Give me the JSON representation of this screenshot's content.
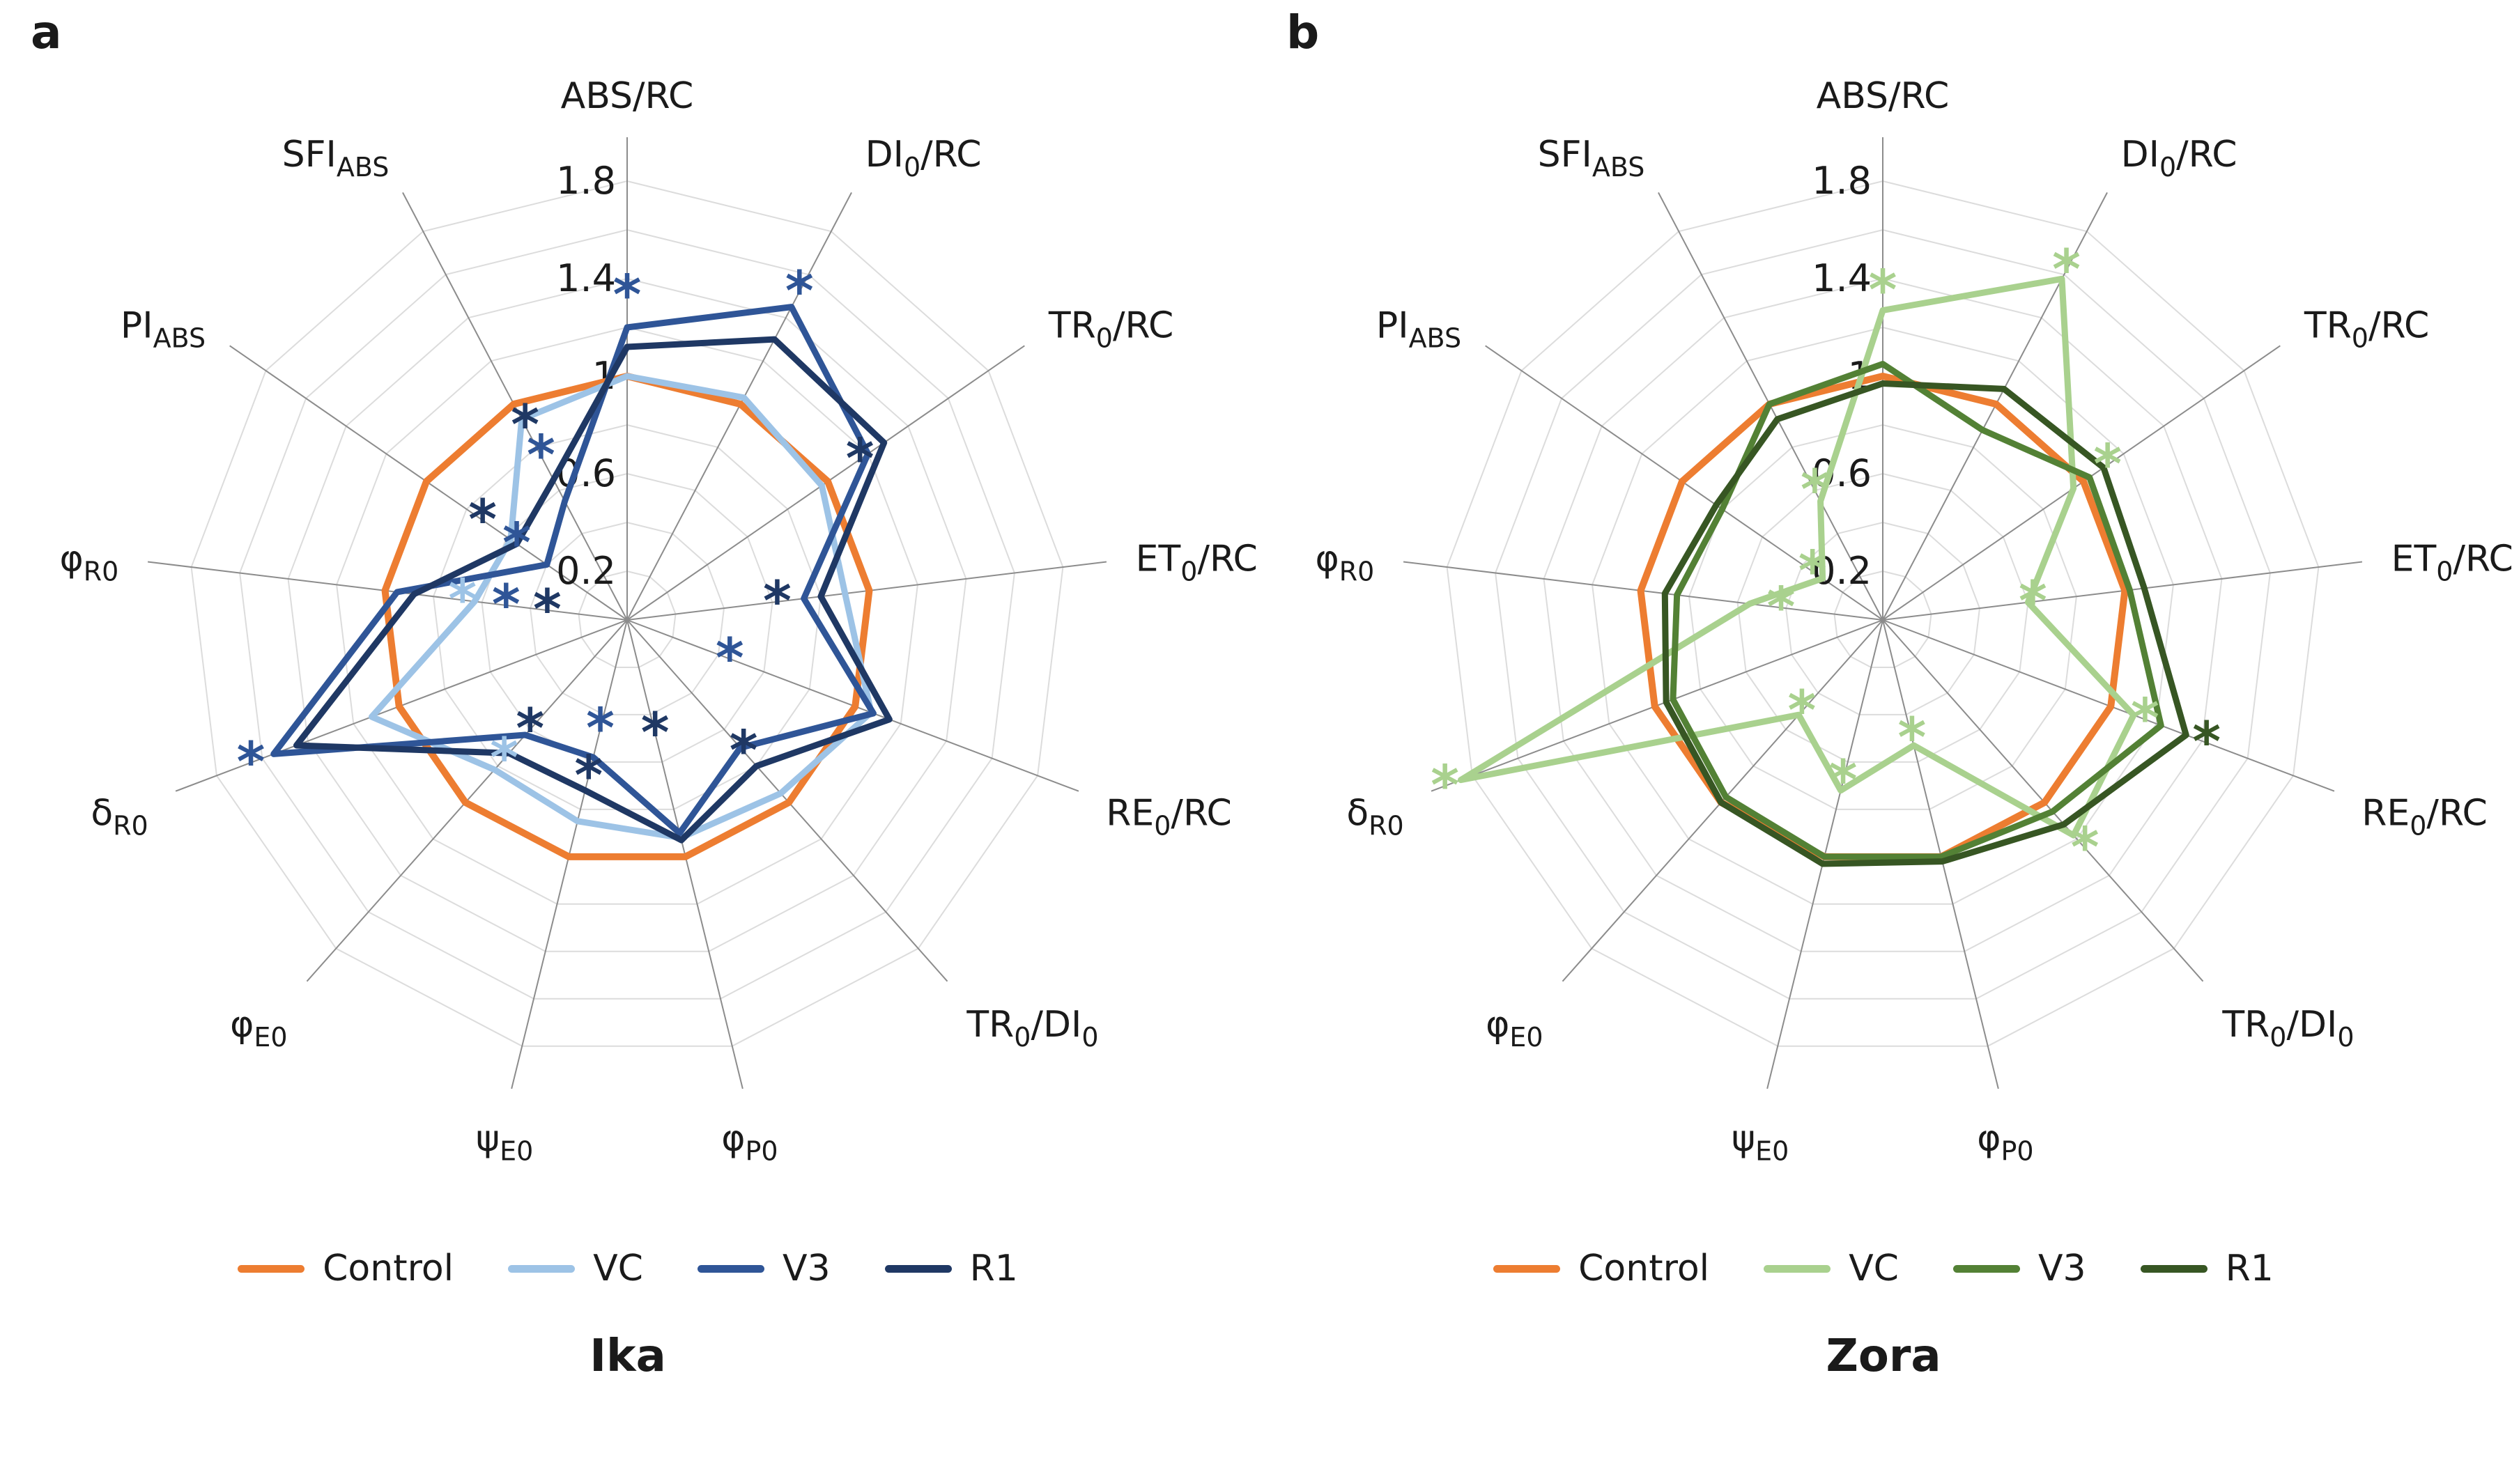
{
  "figure": {
    "panels": [
      {
        "letter": "a",
        "title": "Ika"
      },
      {
        "letter": "b",
        "title": "Zora"
      }
    ]
  },
  "chart_data": [
    {
      "type": "radar",
      "panel": "a",
      "title": "Ika",
      "axes": [
        "ABS/RC",
        "DI0/RC",
        "TR0/RC",
        "ET0/RC",
        "RE0/RC",
        "TR0/DI0",
        "phiP0",
        "psiE0",
        "phiE0",
        "deltaR0",
        "phiR0",
        "PI_ABS",
        "SFI_ABS"
      ],
      "axis_labels": [
        [
          {
            "t": "ABS/RC"
          }
        ],
        [
          {
            "t": "DI"
          },
          {
            "sub": "0"
          },
          {
            "t": "/RC"
          }
        ],
        [
          {
            "t": "TR"
          },
          {
            "sub": "0"
          },
          {
            "t": "/RC"
          }
        ],
        [
          {
            "t": "ET"
          },
          {
            "sub": "0"
          },
          {
            "t": "/RC"
          }
        ],
        [
          {
            "t": "RE"
          },
          {
            "sub": "0"
          },
          {
            "t": "/RC"
          }
        ],
        [
          {
            "t": "TR"
          },
          {
            "sub": "0"
          },
          {
            "t": "/DI"
          },
          {
            "sub": "0"
          }
        ],
        [
          {
            "t": "φ"
          },
          {
            "sub": "P0"
          }
        ],
        [
          {
            "t": "ψ"
          },
          {
            "sub": "E0"
          }
        ],
        [
          {
            "t": "φ"
          },
          {
            "sub": "E0"
          }
        ],
        [
          {
            "t": "δ"
          },
          {
            "sub": "R0"
          }
        ],
        [
          {
            "t": "φ"
          },
          {
            "sub": "R0"
          }
        ],
        [
          {
            "t": "PI"
          },
          {
            "sub": "ABS"
          }
        ],
        [
          {
            "t": "SFI"
          },
          {
            "sub": "ABS"
          }
        ]
      ],
      "radial_ticks": {
        "labels": [
          "0.2",
          "0.6",
          "1",
          "1.4",
          "1.8"
        ],
        "values": [
          0.2,
          0.6,
          1,
          1.4,
          1.8
        ]
      },
      "grid": {
        "interval": 0.2,
        "max": 1.8
      },
      "rlim": [
        0,
        2.0
      ],
      "series": [
        {
          "name": "Control",
          "color": "#ED7D31",
          "values": [
            1,
            1,
            1,
            1,
            1,
            1,
            1,
            1,
            1,
            1,
            1,
            1,
            1
          ]
        },
        {
          "name": "VC",
          "color": "#9DC3E6",
          "values": [
            1.0,
            1.03,
            0.97,
            0.9,
            1.07,
            0.95,
            0.92,
            0.85,
            0.82,
            1.12,
            0.63,
            0.58,
            0.93
          ]
        },
        {
          "name": "V3",
          "color": "#2F5597",
          "values": [
            1.2,
            1.45,
            1.2,
            0.73,
            1.08,
            0.7,
            0.9,
            0.58,
            0.63,
            1.55,
            0.95,
            0.4,
            0.55
          ]
        },
        {
          "name": "R1",
          "color": "#1F3864",
          "values": [
            1.12,
            1.3,
            1.28,
            0.8,
            1.15,
            0.8,
            0.93,
            0.72,
            0.73,
            1.45,
            0.88,
            0.55,
            0.65
          ]
        }
      ],
      "significance_markers": [
        {
          "axis": "ABS/RC",
          "series": "V3",
          "r": 1.33,
          "symbol": "*"
        },
        {
          "axis": "DI0/RC",
          "series": "V3",
          "r": 1.52,
          "symbol": "*"
        },
        {
          "axis": "TR0/RC",
          "series": "R1",
          "r": 1.16,
          "symbol": "*"
        },
        {
          "axis": "ET0/RC",
          "series": "R1",
          "r": 0.62,
          "symbol": "*"
        },
        {
          "axis": "RE0/RC",
          "series": "V3",
          "r": 0.45,
          "symbol": "*"
        },
        {
          "axis": "TR0/DI0",
          "series": "R1",
          "r": 0.72,
          "symbol": "*"
        },
        {
          "axis": "phiP0",
          "series": "R1",
          "r": 0.48,
          "symbol": "*"
        },
        {
          "axis": "psiE0",
          "series": "V3",
          "r": 0.46,
          "symbol": "*"
        },
        {
          "axis": "psiE0",
          "series": "R1",
          "r": 0.66,
          "symbol": "*"
        },
        {
          "axis": "phiE0",
          "series": "R1",
          "r": 0.6,
          "symbol": "*"
        },
        {
          "axis": "phiE0",
          "series": "VC",
          "r": 0.76,
          "symbol": "*"
        },
        {
          "axis": "deltaR0",
          "series": "V3",
          "r": 1.65,
          "symbol": "*"
        },
        {
          "axis": "phiR0",
          "series": "VC",
          "r": 0.68,
          "symbol": "*"
        },
        {
          "axis": "phiR0",
          "series": "V3",
          "r": 0.5,
          "symbol": "*"
        },
        {
          "axis": "phiR0",
          "series": "R1",
          "r": 0.33,
          "symbol": "*"
        },
        {
          "axis": "PI_ABS",
          "series": "V3",
          "r": 0.55,
          "symbol": "*"
        },
        {
          "axis": "PI_ABS",
          "series": "R1",
          "r": 0.72,
          "symbol": "*"
        },
        {
          "axis": "SFI_ABS",
          "series": "R1",
          "r": 0.9,
          "symbol": "*"
        },
        {
          "axis": "SFI_ABS",
          "series": "V3",
          "r": 0.76,
          "symbol": "*"
        }
      ]
    },
    {
      "type": "radar",
      "panel": "b",
      "title": "Zora",
      "axes": [
        "ABS/RC",
        "DI0/RC",
        "TR0/RC",
        "ET0/RC",
        "RE0/RC",
        "TR0/DI0",
        "phiP0",
        "psiE0",
        "phiE0",
        "deltaR0",
        "phiR0",
        "PI_ABS",
        "SFI_ABS"
      ],
      "axis_labels": [
        [
          {
            "t": "ABS/RC"
          }
        ],
        [
          {
            "t": "DI"
          },
          {
            "sub": "0"
          },
          {
            "t": "/RC"
          }
        ],
        [
          {
            "t": "TR"
          },
          {
            "sub": "0"
          },
          {
            "t": "/RC"
          }
        ],
        [
          {
            "t": "ET"
          },
          {
            "sub": "0"
          },
          {
            "t": "/RC"
          }
        ],
        [
          {
            "t": "RE"
          },
          {
            "sub": "0"
          },
          {
            "t": "/RC"
          }
        ],
        [
          {
            "t": "TR"
          },
          {
            "sub": "0"
          },
          {
            "t": "/DI"
          },
          {
            "sub": "0"
          }
        ],
        [
          {
            "t": "φ"
          },
          {
            "sub": "P0"
          }
        ],
        [
          {
            "t": "ψ"
          },
          {
            "sub": "E0"
          }
        ],
        [
          {
            "t": "φ"
          },
          {
            "sub": "E0"
          }
        ],
        [
          {
            "t": "δ"
          },
          {
            "sub": "R0"
          }
        ],
        [
          {
            "t": "φ"
          },
          {
            "sub": "R0"
          }
        ],
        [
          {
            "t": "PI"
          },
          {
            "sub": "ABS"
          }
        ],
        [
          {
            "t": "SFI"
          },
          {
            "sub": "ABS"
          }
        ]
      ],
      "radial_ticks": {
        "labels": [
          "0.2",
          "0.6",
          "1",
          "1.4",
          "1.8"
        ],
        "values": [
          0.2,
          0.6,
          1,
          1.4,
          1.8
        ]
      },
      "grid": {
        "interval": 0.2,
        "max": 1.8
      },
      "rlim": [
        0,
        2.0
      ],
      "series": [
        {
          "name": "Control",
          "color": "#ED7D31",
          "values": [
            1,
            1,
            1,
            1,
            1,
            1,
            1,
            1,
            1,
            1,
            1,
            1,
            1
          ]
        },
        {
          "name": "VC",
          "color": "#A9D18E",
          "values": [
            1.27,
            1.58,
            0.95,
            0.6,
            1.1,
            1.18,
            0.53,
            0.72,
            0.52,
            1.85,
            0.55,
            0.3,
            0.55
          ]
        },
        {
          "name": "V3",
          "color": "#538135",
          "values": [
            1.05,
            0.88,
            1.03,
            1.02,
            1.22,
            1.05,
            1.0,
            1.0,
            0.97,
            0.92,
            0.85,
            0.8,
            1.0
          ]
        },
        {
          "name": "R1",
          "color": "#375623",
          "values": [
            0.97,
            1.07,
            1.1,
            1.08,
            1.33,
            1.12,
            1.02,
            1.03,
            1.0,
            0.95,
            0.9,
            0.83,
            0.93
          ]
        }
      ],
      "significance_markers": [
        {
          "axis": "ABS/RC",
          "series": "VC",
          "r": 1.35,
          "symbol": "*"
        },
        {
          "axis": "DI0/RC",
          "series": "VC",
          "r": 1.62,
          "symbol": "*"
        },
        {
          "axis": "TR0/RC",
          "series": "VC",
          "r": 1.12,
          "symbol": "*"
        },
        {
          "axis": "ET0/RC",
          "series": "VC",
          "r": 0.62,
          "symbol": "*"
        },
        {
          "axis": "RE0/RC",
          "series": "VC",
          "r": 1.15,
          "symbol": "*"
        },
        {
          "axis": "RE0/RC",
          "series": "R1",
          "r": 1.42,
          "symbol": "*"
        },
        {
          "axis": "TR0/DI0",
          "series": "VC",
          "r": 1.25,
          "symbol": "*"
        },
        {
          "axis": "phiP0",
          "series": "VC",
          "r": 0.5,
          "symbol": "*"
        },
        {
          "axis": "psiE0",
          "series": "VC",
          "r": 0.68,
          "symbol": "*"
        },
        {
          "axis": "phiE0",
          "series": "VC",
          "r": 0.5,
          "symbol": "*"
        },
        {
          "axis": "deltaR0",
          "series": "VC",
          "r": 1.92,
          "symbol": "*"
        },
        {
          "axis": "phiR0",
          "series": "VC",
          "r": 0.42,
          "symbol": "*"
        },
        {
          "axis": "PI_ABS",
          "series": "VC",
          "r": 0.35,
          "symbol": "*"
        },
        {
          "axis": "SFI_ABS",
          "series": "VC",
          "r": 0.6,
          "symbol": "*"
        }
      ]
    }
  ]
}
